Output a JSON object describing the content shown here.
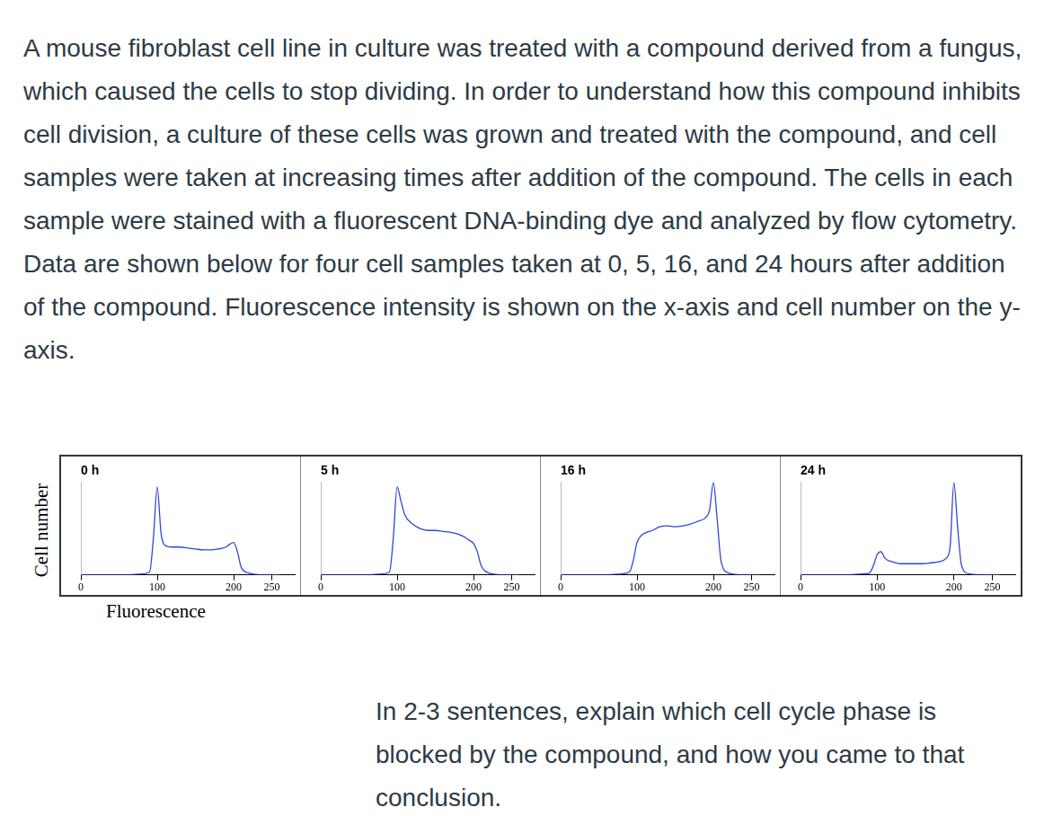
{
  "question": {
    "intro": "A mouse fibroblast cell line in culture was treated with a compound derived from a fungus, which caused the cells to stop dividing. In order to understand how this compound inhibits cell division, a culture of these cells was grown and treated with the compound, and cell samples were taken at increasing times after addition of the compound. The cells in each sample were stained with a fluorescent DNA-binding dye and analyzed by flow cytometry. Data are shown below for four cell samples taken at 0, 5, 16, and 24 hours after addition of the compound. Fluorescence intensity is shown on the x-axis and cell number on the y-axis.",
    "prompt": "In 2-3 sentences, explain which cell cycle phase is blocked by the compound, and how you came to that conclusion."
  },
  "axis_labels": {
    "x": "Fluorescence",
    "y": "Cell number"
  },
  "chart_data": [
    {
      "type": "line",
      "title": "0 h",
      "color": "#2f45d8",
      "x": [
        0,
        20,
        40,
        60,
        80,
        90,
        95,
        100,
        105,
        110,
        120,
        130,
        140,
        150,
        160,
        170,
        180,
        190,
        195,
        200,
        205,
        210,
        220,
        240,
        260
      ],
      "values": [
        0,
        0,
        0,
        0,
        1,
        3,
        40,
        95,
        45,
        32,
        30,
        30,
        29,
        28,
        27,
        27,
        28,
        30,
        33,
        35,
        25,
        8,
        2,
        0,
        0
      ],
      "xlim": [
        0,
        280
      ],
      "xticks": [
        0,
        100,
        200,
        250
      ],
      "ylim": [
        0,
        100
      ],
      "tick_labels": "x",
      "grid": false
    },
    {
      "type": "line",
      "title": "5 h",
      "color": "#2f45d8",
      "x": [
        0,
        20,
        40,
        60,
        80,
        90,
        95,
        100,
        105,
        110,
        120,
        130,
        140,
        150,
        160,
        170,
        180,
        190,
        195,
        200,
        205,
        210,
        220,
        240,
        260
      ],
      "values": [
        0,
        0,
        0,
        0,
        1,
        3,
        40,
        95,
        80,
        65,
        55,
        50,
        48,
        48,
        47,
        46,
        44,
        40,
        37,
        34,
        25,
        10,
        2,
        0,
        0
      ],
      "xlim": [
        0,
        280
      ],
      "xticks": [
        0,
        100,
        200,
        250
      ],
      "ylim": [
        0,
        100
      ],
      "tick_labels": "x",
      "grid": false
    },
    {
      "type": "line",
      "title": "16 h",
      "color": "#2f45d8",
      "x": [
        0,
        20,
        40,
        60,
        80,
        90,
        95,
        100,
        105,
        110,
        120,
        130,
        140,
        150,
        160,
        170,
        180,
        190,
        195,
        200,
        205,
        210,
        220,
        240,
        260
      ],
      "values": [
        0,
        0,
        0,
        0,
        1,
        3,
        15,
        35,
        42,
        45,
        48,
        52,
        53,
        52,
        53,
        55,
        58,
        62,
        70,
        100,
        60,
        15,
        2,
        0,
        0
      ],
      "xlim": [
        0,
        280
      ],
      "xticks": [
        0,
        100,
        200,
        250
      ],
      "ylim": [
        0,
        100
      ],
      "tick_labels": "x",
      "grid": false
    },
    {
      "type": "line",
      "title": "24 h",
      "color": "#2f45d8",
      "x": [
        0,
        20,
        40,
        60,
        80,
        90,
        95,
        100,
        105,
        110,
        120,
        130,
        140,
        150,
        160,
        170,
        180,
        190,
        195,
        200,
        205,
        210,
        220,
        240,
        260
      ],
      "values": [
        0,
        0,
        0,
        0,
        1,
        2,
        10,
        22,
        25,
        18,
        14,
        12,
        12,
        12,
        12,
        13,
        14,
        18,
        30,
        100,
        50,
        10,
        1,
        0,
        0
      ],
      "xlim": [
        0,
        280
      ],
      "xticks": [
        0,
        100,
        200,
        250
      ],
      "ylim": [
        0,
        100
      ],
      "tick_labels": "x",
      "grid": false
    }
  ]
}
